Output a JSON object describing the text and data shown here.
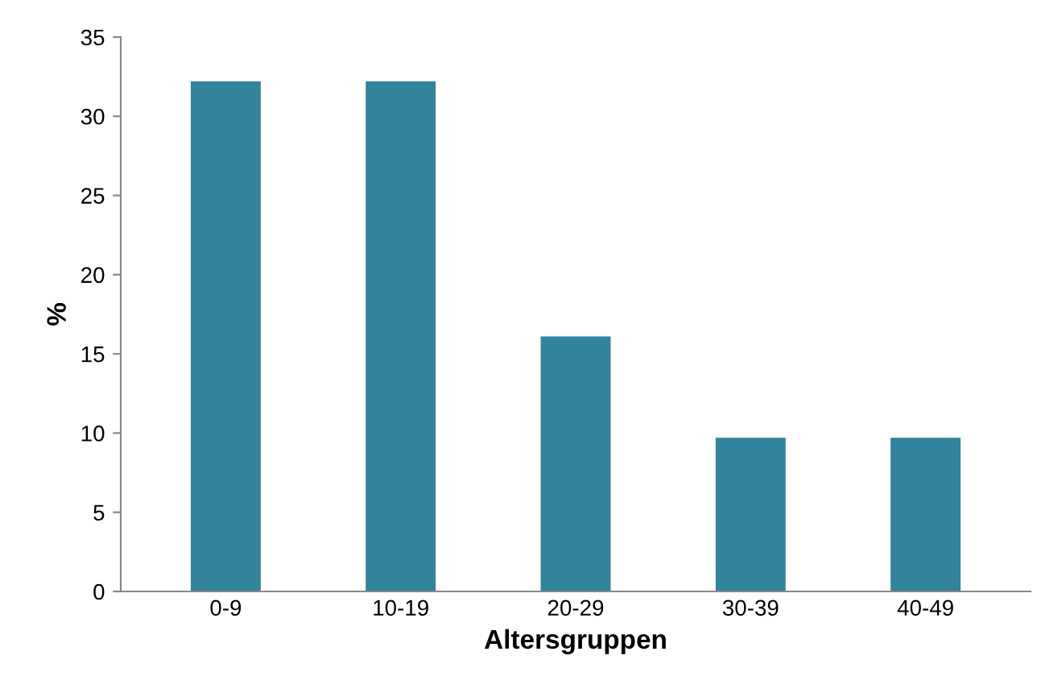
{
  "chart_data": {
    "type": "bar",
    "xlabel": "Altersgruppen",
    "ylabel": "%",
    "categories": [
      "0-9",
      "10-19",
      "20-29",
      "30-39",
      "40-49"
    ],
    "values": [
      32.2,
      32.2,
      16.1,
      9.7,
      9.7
    ],
    "color": "#31849b",
    "ylim": [
      0,
      35
    ],
    "yticks": [
      0,
      5,
      10,
      15,
      20,
      25,
      30,
      35
    ],
    "grid": false,
    "legend": false
  }
}
